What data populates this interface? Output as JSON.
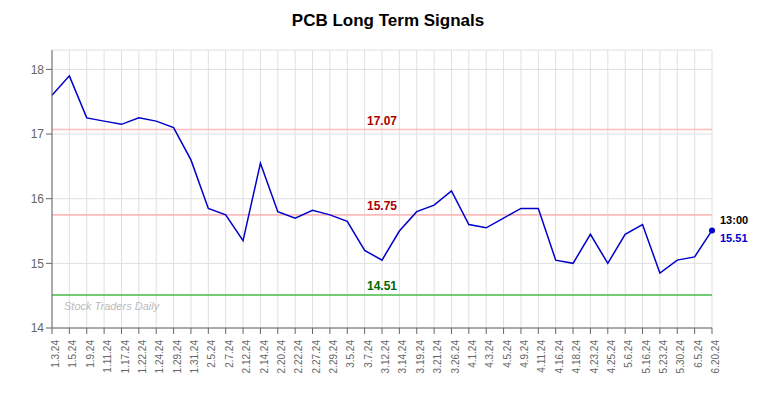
{
  "chart_data": {
    "type": "line",
    "title": "PCB Long Term Signals",
    "categories": [
      "1.3.24",
      "1.5.24",
      "1.9.24",
      "1.11.24",
      "1.17.24",
      "1.22.24",
      "1.24.24",
      "1.29.24",
      "1.31.24",
      "2.5.24",
      "2.7.24",
      "2.12.24",
      "2.14.24",
      "2.20.24",
      "2.22.24",
      "2.27.24",
      "2.29.24",
      "3.5.24",
      "3.7.24",
      "3.12.24",
      "3.14.24",
      "3.19.24",
      "3.21.24",
      "3.26.24",
      "4.1.24",
      "4.3.24",
      "4.5.24",
      "4.9.24",
      "4.11.24",
      "4.16.24",
      "4.18.24",
      "4.23.24",
      "4.25.24",
      "5.6.24",
      "5.16.24",
      "5.23.24",
      "5.30.24",
      "6.5.24",
      "6.20.24"
    ],
    "values": [
      17.6,
      17.9,
      17.25,
      17.2,
      17.15,
      17.25,
      17.2,
      17.1,
      16.6,
      15.85,
      15.75,
      15.35,
      16.55,
      15.8,
      15.7,
      15.82,
      15.75,
      15.65,
      15.2,
      15.05,
      15.5,
      15.8,
      15.9,
      16.12,
      15.6,
      15.55,
      15.7,
      15.85,
      15.85,
      15.05,
      15.0,
      15.45,
      15.0,
      15.45,
      15.6,
      14.85,
      15.05,
      15.1,
      15.51
    ],
    "color": "#0000cc",
    "ylim": [
      14.0,
      18.3
    ],
    "yticks": [
      14,
      15,
      16,
      17,
      18
    ],
    "grid": true,
    "annotations": [
      {
        "type": "hline",
        "y": 17.07,
        "color": "#ffbbbb",
        "label": "17.07",
        "label_color": "#aa0000"
      },
      {
        "type": "hline",
        "y": 15.75,
        "color": "#ffbbbb",
        "label": "15.75",
        "label_color": "#aa0000"
      },
      {
        "type": "hline",
        "y": 14.51,
        "color": "#44bb44",
        "label": "14.51",
        "label_color": "#006600"
      },
      {
        "type": "text",
        "text": "13:00",
        "color": "#000000"
      },
      {
        "type": "text",
        "text": "15.51",
        "color": "#0000cc"
      },
      {
        "type": "watermark",
        "text": "Stock Traders Daily",
        "color": "#bbbbbb"
      }
    ]
  }
}
